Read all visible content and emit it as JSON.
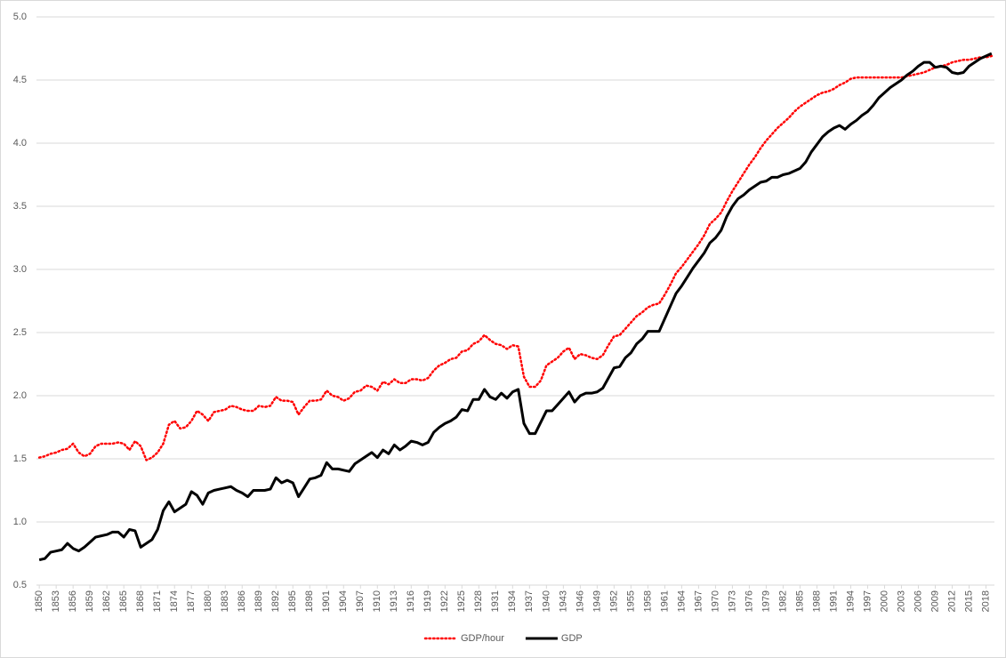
{
  "chart_data": {
    "type": "line",
    "legend": "bottom",
    "grid": true,
    "x": [
      1850,
      1851,
      1852,
      1853,
      1854,
      1855,
      1856,
      1857,
      1858,
      1859,
      1860,
      1861,
      1862,
      1863,
      1864,
      1865,
      1866,
      1867,
      1868,
      1869,
      1870,
      1871,
      1872,
      1873,
      1874,
      1875,
      1876,
      1877,
      1878,
      1879,
      1880,
      1881,
      1882,
      1883,
      1884,
      1885,
      1886,
      1887,
      1888,
      1889,
      1890,
      1891,
      1892,
      1893,
      1894,
      1895,
      1896,
      1897,
      1898,
      1899,
      1900,
      1901,
      1902,
      1903,
      1904,
      1905,
      1906,
      1907,
      1908,
      1909,
      1910,
      1911,
      1912,
      1913,
      1914,
      1915,
      1916,
      1917,
      1918,
      1919,
      1920,
      1921,
      1922,
      1923,
      1924,
      1925,
      1926,
      1927,
      1928,
      1929,
      1930,
      1931,
      1932,
      1933,
      1934,
      1935,
      1936,
      1937,
      1938,
      1939,
      1940,
      1941,
      1942,
      1943,
      1944,
      1945,
      1946,
      1947,
      1948,
      1949,
      1950,
      1951,
      1952,
      1953,
      1954,
      1955,
      1956,
      1957,
      1958,
      1959,
      1960,
      1961,
      1962,
      1963,
      1964,
      1965,
      1966,
      1967,
      1968,
      1969,
      1970,
      1971,
      1972,
      1973,
      1974,
      1975,
      1976,
      1977,
      1978,
      1979,
      1980,
      1981,
      1982,
      1983,
      1984,
      1985,
      1986,
      1987,
      1988,
      1989,
      1990,
      1991,
      1992,
      1993,
      1994,
      1995,
      1996,
      1997,
      1998,
      1999,
      2000,
      2001,
      2002,
      2003,
      2004,
      2005,
      2006,
      2007,
      2008,
      2009,
      2010,
      2011,
      2012,
      2013,
      2014,
      2015,
      2016,
      2017,
      2018,
      2019
    ],
    "series": [
      {
        "name": "GDP/hour",
        "color": "#ff0000",
        "style": "dotted",
        "values": [
          1.51,
          1.52,
          1.54,
          1.55,
          1.57,
          1.58,
          1.62,
          1.55,
          1.52,
          1.54,
          1.6,
          1.62,
          1.62,
          1.62,
          1.63,
          1.62,
          1.57,
          1.64,
          1.6,
          1.49,
          1.51,
          1.55,
          1.62,
          1.77,
          1.8,
          1.74,
          1.75,
          1.8,
          1.88,
          1.85,
          1.8,
          1.87,
          1.88,
          1.89,
          1.92,
          1.91,
          1.89,
          1.88,
          1.88,
          1.92,
          1.91,
          1.92,
          1.99,
          1.96,
          1.96,
          1.95,
          1.85,
          1.91,
          1.96,
          1.96,
          1.97,
          2.04,
          2.0,
          1.99,
          1.96,
          1.98,
          2.03,
          2.04,
          2.08,
          2.07,
          2.04,
          2.11,
          2.09,
          2.13,
          2.1,
          2.1,
          2.13,
          2.13,
          2.12,
          2.14,
          2.2,
          2.24,
          2.26,
          2.29,
          2.3,
          2.35,
          2.36,
          2.41,
          2.43,
          2.48,
          2.44,
          2.41,
          2.4,
          2.37,
          2.4,
          2.39,
          2.15,
          2.07,
          2.07,
          2.12,
          2.24,
          2.27,
          2.3,
          2.35,
          2.38,
          2.29,
          2.33,
          2.32,
          2.3,
          2.29,
          2.32,
          2.4,
          2.47,
          2.48,
          2.53,
          2.58,
          2.63,
          2.66,
          2.7,
          2.72,
          2.73,
          2.8,
          2.88,
          2.97,
          3.02,
          3.08,
          3.14,
          3.2,
          3.27,
          3.36,
          3.4,
          3.45,
          3.54,
          3.62,
          3.69,
          3.76,
          3.83,
          3.89,
          3.96,
          4.02,
          4.07,
          4.12,
          4.16,
          4.2,
          4.25,
          4.29,
          4.32,
          4.35,
          4.38,
          4.4,
          4.41,
          4.43,
          4.46,
          4.48,
          4.51,
          4.52,
          4.52,
          4.52,
          4.52,
          4.52,
          4.52,
          4.52,
          4.52,
          4.52,
          4.53,
          4.54,
          4.55,
          4.56,
          4.58,
          4.6,
          4.61,
          4.62,
          4.64,
          4.65,
          4.66,
          4.66,
          4.67,
          4.68,
          4.68,
          4.69
        ]
      },
      {
        "name": "GDP",
        "color": "#000000",
        "style": "solid",
        "values": [
          0.7,
          0.71,
          0.76,
          0.77,
          0.78,
          0.83,
          0.79,
          0.77,
          0.8,
          0.84,
          0.88,
          0.89,
          0.9,
          0.92,
          0.92,
          0.88,
          0.94,
          0.93,
          0.8,
          0.83,
          0.86,
          0.94,
          1.09,
          1.16,
          1.08,
          1.11,
          1.14,
          1.24,
          1.21,
          1.14,
          1.23,
          1.25,
          1.26,
          1.27,
          1.28,
          1.25,
          1.23,
          1.2,
          1.25,
          1.25,
          1.25,
          1.26,
          1.35,
          1.31,
          1.33,
          1.31,
          1.2,
          1.27,
          1.34,
          1.35,
          1.37,
          1.47,
          1.42,
          1.42,
          1.41,
          1.4,
          1.46,
          1.49,
          1.52,
          1.55,
          1.51,
          1.57,
          1.54,
          1.61,
          1.57,
          1.6,
          1.64,
          1.63,
          1.61,
          1.63,
          1.71,
          1.75,
          1.78,
          1.8,
          1.83,
          1.89,
          1.88,
          1.97,
          1.97,
          2.05,
          1.99,
          1.97,
          2.02,
          1.98,
          2.03,
          2.05,
          1.78,
          1.7,
          1.7,
          1.79,
          1.88,
          1.88,
          1.93,
          1.98,
          2.03,
          1.95,
          2.0,
          2.02,
          2.02,
          2.03,
          2.06,
          2.14,
          2.22,
          2.23,
          2.3,
          2.34,
          2.41,
          2.45,
          2.51,
          2.51,
          2.51,
          2.61,
          2.71,
          2.81,
          2.87,
          2.94,
          3.01,
          3.07,
          3.13,
          3.21,
          3.25,
          3.31,
          3.42,
          3.5,
          3.56,
          3.59,
          3.63,
          3.66,
          3.69,
          3.7,
          3.73,
          3.73,
          3.75,
          3.76,
          3.78,
          3.8,
          3.85,
          3.93,
          3.99,
          4.05,
          4.09,
          4.12,
          4.14,
          4.11,
          4.15,
          4.18,
          4.22,
          4.25,
          4.3,
          4.36,
          4.4,
          4.44,
          4.47,
          4.5,
          4.54,
          4.57,
          4.61,
          4.64,
          4.64,
          4.6,
          4.61,
          4.6,
          4.56,
          4.55,
          4.56,
          4.61,
          4.64,
          4.67,
          4.69,
          4.71
        ]
      }
    ],
    "xlim": [
      1849.5,
      2019.5
    ],
    "xticks": [
      1850,
      1853,
      1856,
      1859,
      1862,
      1865,
      1868,
      1871,
      1874,
      1877,
      1880,
      1883,
      1886,
      1889,
      1892,
      1895,
      1898,
      1901,
      1904,
      1907,
      1910,
      1913,
      1916,
      1919,
      1922,
      1925,
      1928,
      1931,
      1934,
      1937,
      1940,
      1943,
      1946,
      1949,
      1952,
      1955,
      1958,
      1961,
      1964,
      1967,
      1970,
      1973,
      1976,
      1979,
      1982,
      1985,
      1988,
      1991,
      1994,
      1997,
      2000,
      2003,
      2006,
      2009,
      2012,
      2015,
      2018
    ],
    "ylim": [
      0.5,
      5.0
    ],
    "yticks": [
      0.5,
      {
        "value": 1,
        "label": "1.0"
      },
      1.5,
      {
        "value": 2,
        "label": "2.0"
      },
      2.5,
      {
        "value": 3,
        "label": "3.0"
      },
      3.5,
      {
        "value": 4,
        "label": "4.0"
      },
      4.5,
      {
        "value": 5,
        "label": "5.0"
      }
    ]
  }
}
